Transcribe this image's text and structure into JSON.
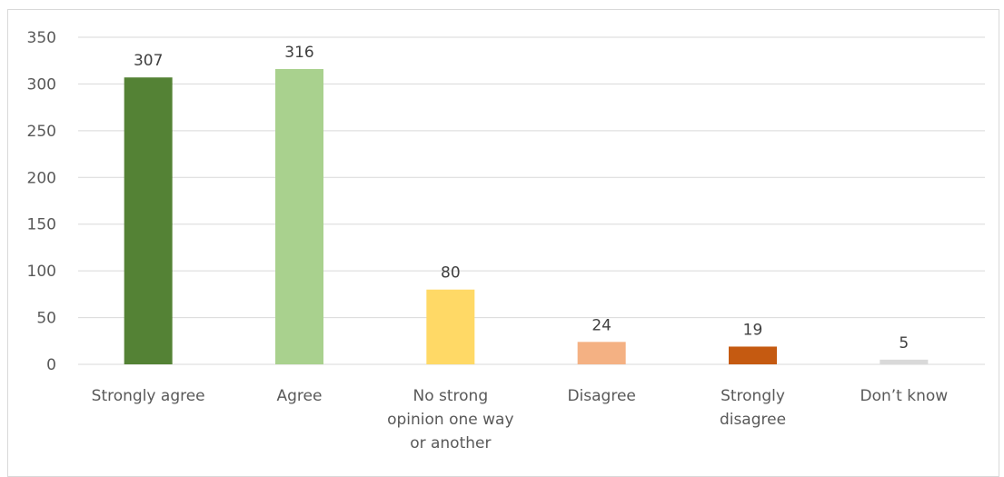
{
  "chart_data": {
    "type": "bar",
    "title": "",
    "xlabel": "",
    "ylabel": "",
    "categories": [
      [
        "Strongly agree"
      ],
      [
        "Agree"
      ],
      [
        "No strong",
        "opinion one way",
        "or another"
      ],
      [
        "Disagree"
      ],
      [
        "Strongly",
        "disagree"
      ],
      [
        "Don’t know"
      ]
    ],
    "values": [
      307,
      316,
      80,
      24,
      19,
      5
    ],
    "colors": [
      "#548235",
      "#a9d18e",
      "#ffd966",
      "#f4b183",
      "#c55a11",
      "#d9d9d9"
    ],
    "ylim": [
      0,
      350
    ],
    "yticks": [
      0,
      50,
      100,
      150,
      200,
      250,
      300,
      350
    ],
    "grid": true,
    "legend": "none",
    "data_labels": true
  }
}
